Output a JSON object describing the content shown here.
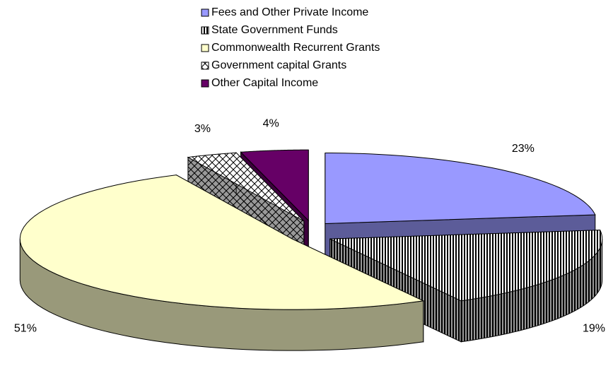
{
  "chart_data": {
    "type": "pie3d",
    "categories": [
      "Fees and Other Private Income",
      "State Government Funds",
      "Commonwealth Recurrent Grants",
      "Government capital Grants",
      "Other Capital Income"
    ],
    "values": [
      23,
      19,
      51,
      3,
      4
    ],
    "value_labels": [
      "23%",
      "19%",
      "51%",
      "3%",
      "4%"
    ],
    "colors": [
      "#9999ff",
      "#000000",
      "#ffffcc",
      "#000000",
      "#660066"
    ],
    "patterns": [
      "solid",
      "vertical",
      "solid",
      "diagonal-cross",
      "solid"
    ],
    "legend": "top"
  }
}
